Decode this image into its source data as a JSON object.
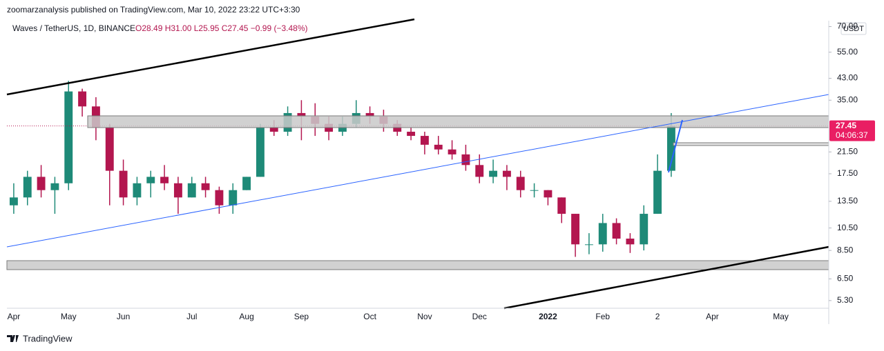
{
  "header": {
    "publisher": "zoomarzanalysis published on TradingView.com, Mar 10, 2022 23:22 UTC+3:30",
    "symbol": "Waves / TetherUS, 1D, BINANCE",
    "ohlc": "O28.49 H31.00 L25.95 C27.45 −0.99 (−3.48%)"
  },
  "footer": {
    "brand": "TradingView"
  },
  "chart_data": {
    "type": "candlestick",
    "log_scale": true,
    "currency": "USDT",
    "up_color": "#1e8a78",
    "down_color": "#b3164f",
    "last_price": 27.45,
    "countdown": "04:06:37",
    "categories": [
      "Apr",
      null,
      null,
      null,
      "May",
      null,
      null,
      null,
      "Jun",
      null,
      null,
      null,
      null,
      "Jul",
      null,
      null,
      null,
      "Aug",
      null,
      null,
      null,
      "Sep",
      null,
      null,
      null,
      null,
      "Oct",
      null,
      null,
      null,
      "Nov",
      null,
      null,
      null,
      "Dec",
      null,
      null,
      null,
      null,
      "2022",
      null,
      null,
      null,
      "Feb",
      null,
      null,
      null,
      "2",
      null,
      null,
      null,
      "Apr",
      null,
      null,
      null,
      null,
      "May",
      null,
      null,
      null
    ],
    "open": [
      13,
      14,
      17,
      15,
      16,
      38,
      33,
      27,
      18,
      14,
      16,
      17,
      16,
      14,
      16,
      15,
      13,
      15,
      17,
      27,
      26,
      31,
      30,
      28,
      26,
      28,
      31,
      30,
      28,
      26,
      25,
      23,
      22,
      21,
      19,
      17,
      18,
      17,
      15,
      15,
      14,
      12,
      9,
      9,
      11,
      9.5,
      9,
      12,
      18,
      null,
      null,
      null,
      null,
      null,
      null,
      null,
      null,
      null,
      null,
      null
    ],
    "high": [
      16,
      18,
      19,
      17,
      42,
      39,
      36,
      28,
      20,
      17,
      18,
      19,
      17,
      17,
      17,
      15.5,
      16,
      17,
      28,
      29,
      33,
      35,
      34,
      30,
      30,
      35,
      33,
      32,
      29,
      27,
      26,
      25,
      24,
      23,
      21,
      20,
      19,
      18,
      16,
      15,
      14,
      12,
      10,
      12,
      11.5,
      10,
      13,
      21,
      31,
      null,
      null,
      null,
      null,
      null,
      null,
      null,
      null,
      null,
      null,
      null
    ],
    "low": [
      12,
      13,
      14,
      12,
      15,
      30,
      24,
      13,
      13,
      13,
      14,
      15,
      12,
      14,
      14,
      12,
      12,
      15,
      17,
      25,
      25,
      24,
      25,
      24,
      25,
      27,
      28,
      26,
      25,
      24,
      21,
      21,
      20,
      18,
      16,
      16,
      15,
      14,
      14,
      13,
      11,
      8,
      8.2,
      8.4,
      9,
      8.3,
      8.5,
      12,
      17,
      null,
      null,
      null,
      null,
      null,
      null,
      null,
      null,
      null,
      null,
      null
    ],
    "close": [
      14,
      17,
      15,
      16,
      38,
      33,
      27,
      18,
      14,
      16,
      17,
      16,
      14,
      16,
      15,
      13,
      15,
      17,
      27,
      26,
      31,
      30,
      28,
      26,
      28,
      31,
      30,
      28,
      26,
      25,
      23,
      22,
      21,
      19,
      17,
      18,
      17,
      15,
      15,
      14,
      12,
      9,
      9,
      11,
      9.5,
      9,
      12,
      18,
      27.45,
      null,
      null,
      null,
      null,
      null,
      null,
      null,
      null,
      null,
      null,
      null
    ],
    "ylim": [
      4.93,
      74
    ],
    "yticks": [
      {
        "value": 5.3,
        "label": "5.30"
      },
      {
        "value": 6.5,
        "label": "6.50"
      },
      {
        "value": 8.5,
        "label": "8.50"
      },
      {
        "value": 10.5,
        "label": "10.50"
      },
      {
        "value": 13.5,
        "label": "13.50"
      },
      {
        "value": 17.5,
        "label": "17.50"
      },
      {
        "value": 21.5,
        "label": "21.50"
      },
      {
        "value": 35,
        "label": "35.00"
      },
      {
        "value": 43,
        "label": "43.00"
      },
      {
        "value": 55,
        "label": "55.00"
      },
      {
        "value": 70,
        "label": "70.00"
      }
    ]
  }
}
